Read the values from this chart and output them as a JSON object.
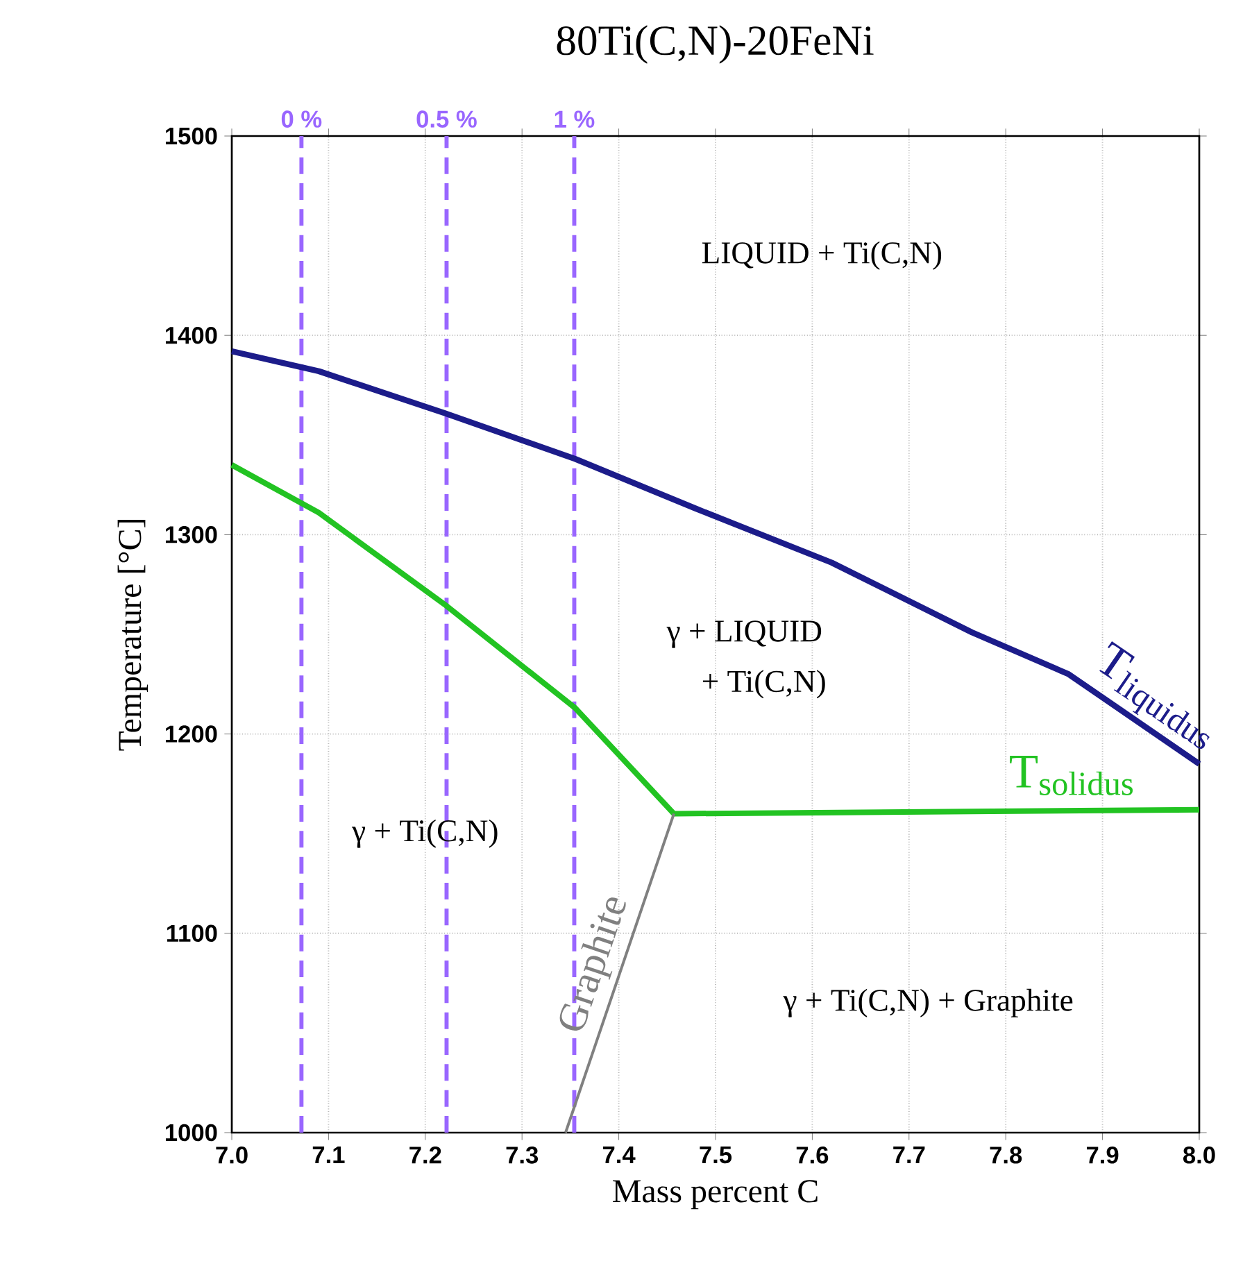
{
  "chart_data": {
    "type": "line",
    "title": "80Ti(C,N)-20FeNi",
    "xlabel": "Mass percent C",
    "ylabel": "Temperature [°C]",
    "xlim": [
      7.0,
      8.0
    ],
    "ylim": [
      1000,
      1500
    ],
    "xticks": [
      {
        "value": 7.0,
        "label": "7.0"
      },
      7.1,
      7.2,
      7.3,
      7.4,
      7.5,
      7.6,
      7.7,
      7.8,
      7.9,
      {
        "value": 8.0,
        "label": "8.0"
      }
    ],
    "yticks": [
      1000,
      1100,
      1200,
      1300,
      1400,
      1500
    ],
    "grid": true,
    "line_style": "solid",
    "marker": "none",
    "series": [
      {
        "name": "T$_{liquidus}$",
        "color": "#1c1c8a",
        "x": [
          7.0,
          7.09,
          7.22,
          7.355,
          7.48,
          7.62,
          7.765,
          7.865,
          8.0
        ],
        "values": [
          1392,
          1382,
          1361,
          1338,
          1313,
          1286,
          1251,
          1230,
          1185
        ]
      },
      {
        "name": "T$_{solidus}$",
        "color": "#22c322",
        "x": [
          7.0,
          7.09,
          7.22,
          7.355,
          7.457,
          8.0
        ],
        "values": [
          1335,
          1311,
          1265,
          1213,
          1160,
          1162
        ]
      },
      {
        "name": "Graphite",
        "color": "#808080",
        "x": [
          7.345,
          7.457
        ],
        "values": [
          1000,
          1160
        ]
      }
    ],
    "ref_lines": [
      {
        "axis": "x",
        "value": 7.072,
        "color": "#9966ff",
        "line_style": "dashed"
      },
      {
        "axis": "x",
        "value": 7.222,
        "color": "#9966ff",
        "line_style": "dashed"
      },
      {
        "axis": "x",
        "value": 7.354,
        "color": "#9966ff",
        "line_style": "dashed"
      }
    ],
    "annotations": [
      "LIQUID + Ti(C,N)",
      "γ + LIQUID",
      "+ Ti(C,N)",
      "γ + Ti(C,N)",
      "γ + Ti(C,N) + Graphite",
      {
        "text": "0 %",
        "x": 7.072,
        "y": 1500
      },
      {
        "text": "0.5 %",
        "x": 7.222,
        "y": 1500
      },
      {
        "text": "1 %",
        "x": 7.354,
        "y": 1500
      }
    ]
  }
}
